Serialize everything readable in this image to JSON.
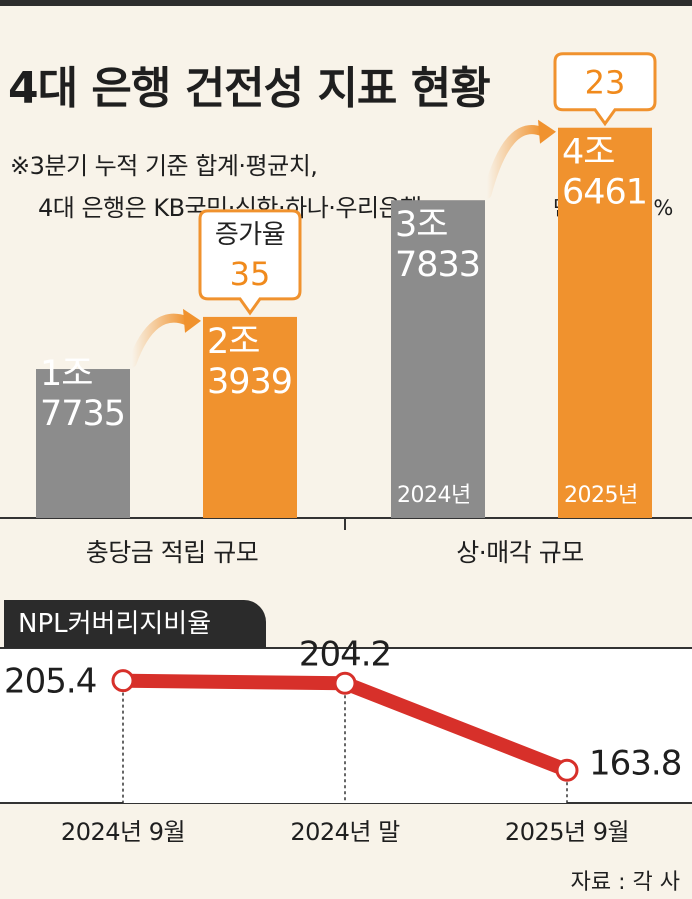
{
  "title": "4대 은행 건전성 지표 현황",
  "notes": [
    "※3분기 누적 기준 합계·평균치,",
    "4대 은행은 KB국민·신한·하나·우리은행"
  ],
  "unit_label": "단위: 억원, %",
  "source": "자료 : 각 사",
  "colors": {
    "prev_bar": "#8c8c8c",
    "curr_bar": "#f0922e",
    "accent_text": "#f08a1c",
    "npl_line": "#d7302a",
    "tab_bg": "#2b2b2b"
  },
  "chart_data": [
    {
      "type": "bar",
      "title": "",
      "categories": [
        "충당금 적립 규모",
        "상·매각 규모"
      ],
      "series": [
        {
          "name": "2024년",
          "values": [
            17735,
            37833
          ],
          "value_labels": [
            [
              "1조",
              "7735"
            ],
            [
              "3조",
              "7833"
            ]
          ]
        },
        {
          "name": "2025년",
          "values": [
            23939,
            46461
          ],
          "value_labels": [
            [
              "2조",
              "3939"
            ],
            [
              "4조",
              "6461"
            ]
          ]
        }
      ],
      "growth": [
        {
          "label": "증가율",
          "value": "35"
        },
        {
          "label": "",
          "value": "23"
        }
      ],
      "year_labels": [
        "2024년",
        "2025년"
      ],
      "ylim": [
        0,
        50000
      ]
    },
    {
      "type": "line",
      "title": "NPL커버리지비율",
      "x": [
        "2024년 9월",
        "2024년 말",
        "2025년 9월"
      ],
      "values": [
        205.4,
        204.2,
        163.8
      ],
      "value_labels": [
        "205.4",
        "204.2",
        "163.8"
      ],
      "ylim": [
        150,
        215
      ]
    }
  ]
}
